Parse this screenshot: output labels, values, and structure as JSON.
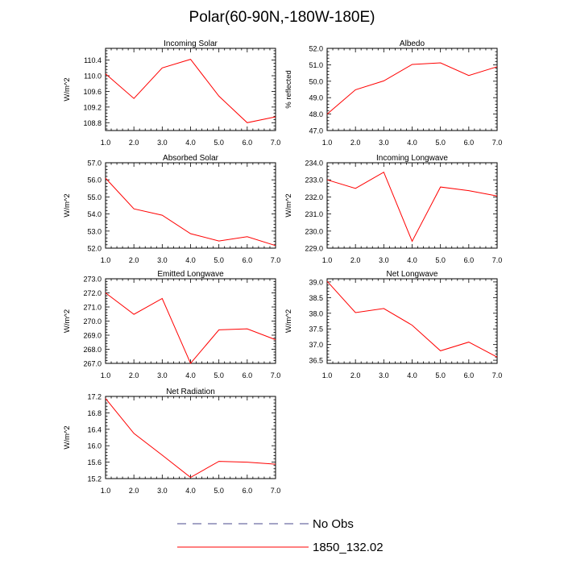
{
  "title": "Polar(60-90N,-180W-180E)",
  "legend": [
    {
      "label": "No Obs",
      "color": "#4a4a8c",
      "dash": true
    },
    {
      "label": "1850_132.02",
      "color": "#ff0000",
      "dash": false
    }
  ],
  "chart_data": [
    {
      "type": "line",
      "title": "Incoming Solar",
      "ylabel": "W/m^2",
      "x": [
        1,
        2,
        3,
        4,
        5,
        6,
        7
      ],
      "values": [
        110.05,
        109.42,
        110.2,
        110.42,
        109.48,
        108.8,
        108.95
      ],
      "xlim": [
        1,
        7
      ],
      "ylim": [
        108.6,
        110.7
      ],
      "yticks": [
        108.8,
        109.2,
        109.6,
        110.0,
        110.4
      ],
      "xticks": [
        1,
        2,
        3,
        4,
        5,
        6,
        7
      ],
      "series": [
        {
          "name": "1850_132.02",
          "color": "#ff0000"
        }
      ]
    },
    {
      "type": "line",
      "title": "Albedo",
      "ylabel": "% reflected",
      "x": [
        1,
        2,
        3,
        4,
        5,
        6,
        7
      ],
      "values": [
        48.0,
        49.48,
        50.02,
        51.02,
        51.12,
        50.35,
        50.88
      ],
      "xlim": [
        1,
        7
      ],
      "ylim": [
        47.0,
        52.0
      ],
      "yticks": [
        47.0,
        48.0,
        49.0,
        50.0,
        51.0,
        52.0
      ],
      "xticks": [
        1,
        2,
        3,
        4,
        5,
        6,
        7
      ],
      "series": [
        {
          "name": "1850_132.02",
          "color": "#ff0000"
        }
      ]
    },
    {
      "type": "line",
      "title": "Absorbed Solar",
      "ylabel": "W/m^2",
      "x": [
        1,
        2,
        3,
        4,
        5,
        6,
        7
      ],
      "values": [
        56.1,
        54.3,
        53.93,
        52.85,
        52.42,
        52.67,
        52.15
      ],
      "xlim": [
        1,
        7
      ],
      "ylim": [
        52.0,
        57.0
      ],
      "yticks": [
        52.0,
        53.0,
        54.0,
        55.0,
        56.0,
        57.0
      ],
      "xticks": [
        1,
        2,
        3,
        4,
        5,
        6,
        7
      ],
      "series": [
        {
          "name": "1850_132.02",
          "color": "#ff0000"
        }
      ]
    },
    {
      "type": "line",
      "title": "Incoming Longwave",
      "ylabel": "W/m^2",
      "x": [
        1,
        2,
        3,
        4,
        5,
        6,
        7
      ],
      "values": [
        233.0,
        232.5,
        233.45,
        229.4,
        232.58,
        232.37,
        232.05
      ],
      "xlim": [
        1,
        7
      ],
      "ylim": [
        229.0,
        234.0
      ],
      "yticks": [
        229.0,
        230.0,
        231.0,
        232.0,
        233.0,
        234.0
      ],
      "xticks": [
        1,
        2,
        3,
        4,
        5,
        6,
        7
      ],
      "series": [
        {
          "name": "1850_132.02",
          "color": "#ff0000"
        }
      ]
    },
    {
      "type": "line",
      "title": "Emitted Longwave",
      "ylabel": "W/m^2",
      "x": [
        1,
        2,
        3,
        4,
        5,
        6,
        7
      ],
      "values": [
        272.0,
        270.48,
        271.6,
        267.0,
        269.38,
        269.45,
        268.68
      ],
      "xlim": [
        1,
        7
      ],
      "ylim": [
        267.0,
        273.0
      ],
      "yticks": [
        267.0,
        268.0,
        269.0,
        270.0,
        271.0,
        272.0,
        273.0
      ],
      "xticks": [
        1,
        2,
        3,
        4,
        5,
        6,
        7
      ],
      "series": [
        {
          "name": "1850_132.02",
          "color": "#ff0000"
        }
      ]
    },
    {
      "type": "line",
      "title": "Net Longwave",
      "ylabel": "W/m^2",
      "x": [
        1,
        2,
        3,
        4,
        5,
        6,
        7
      ],
      "values": [
        39.02,
        38.02,
        38.15,
        37.62,
        36.8,
        37.08,
        36.6
      ],
      "xlim": [
        1,
        7
      ],
      "ylim": [
        36.4,
        39.1
      ],
      "yticks": [
        36.5,
        37.0,
        37.5,
        38.0,
        38.5,
        39.0
      ],
      "xticks": [
        1,
        2,
        3,
        4,
        5,
        6,
        7
      ],
      "series": [
        {
          "name": "1850_132.02",
          "color": "#ff0000"
        }
      ]
    },
    {
      "type": "line",
      "title": "Net Radiation",
      "ylabel": "W/m^2",
      "x": [
        1,
        2,
        3,
        4,
        5,
        6,
        7
      ],
      "values": [
        17.15,
        16.3,
        15.77,
        15.23,
        15.62,
        15.6,
        15.55
      ],
      "xlim": [
        1,
        7
      ],
      "ylim": [
        15.2,
        17.2
      ],
      "yticks": [
        15.2,
        15.6,
        16.0,
        16.4,
        16.8,
        17.2
      ],
      "xticks": [
        1,
        2,
        3,
        4,
        5,
        6,
        7
      ],
      "series": [
        {
          "name": "1850_132.02",
          "color": "#ff0000"
        }
      ]
    }
  ]
}
